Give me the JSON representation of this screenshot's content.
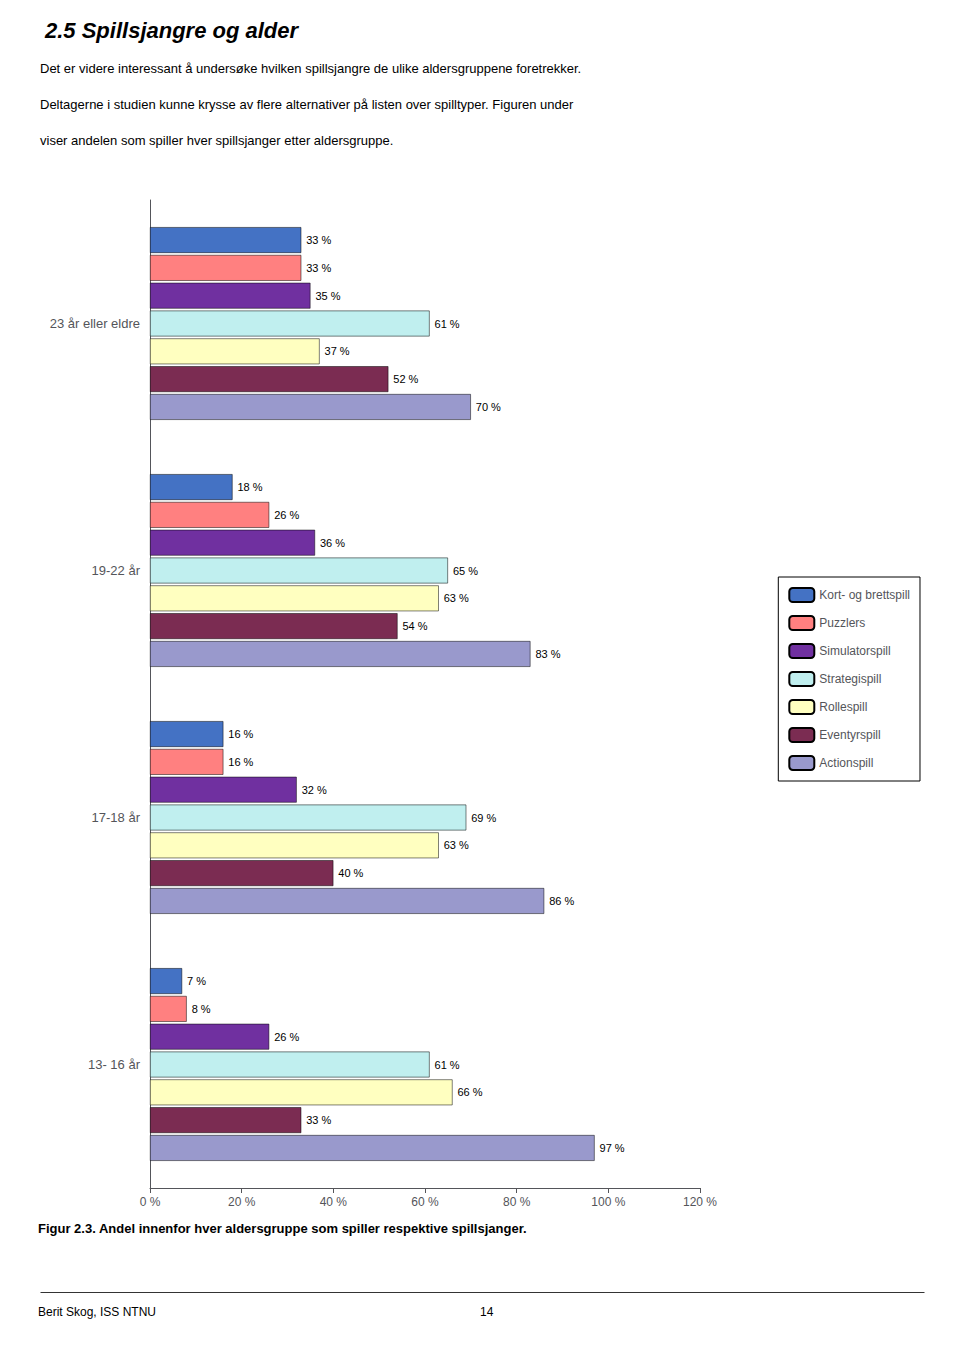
{
  "chart_data": {
    "type": "bar",
    "orientation": "horizontal",
    "title": "2.5 Spillsjangre og alder",
    "subtitle": [
      "Det er videre interessant å undersøke hvilken spillsjangre de ulike aldersgruppene foretrekker.",
      "Deltagerne i studien kunne krysse av flere alternativer på listen over spilltyper. Figuren under",
      "viser andelen som spiller hver spillsjanger etter aldersgruppe."
    ],
    "annotations": [
      "Figur 2.3. Andel innenfor hver aldersgruppe som spiller respektive spillsjanger.",
      "Berit Skog, ISS NTNU",
      "14"
    ],
    "categories": [
      "23 år eller eldre",
      "19-22 år",
      "17-18 år",
      "13- 16 år"
    ],
    "series": [
      {
        "name": "Kort- og brettspill",
        "color": "#4472C4",
        "values": [
          33,
          18,
          16,
          7
        ],
        "value_labels": [
          "33 %",
          "18 %",
          "16 %",
          "7 %"
        ]
      },
      {
        "name": "Puzzlers",
        "color": "#FF8080",
        "values": [
          33,
          26,
          16,
          8
        ],
        "value_labels": [
          "33 %",
          "26 %",
          "16 %",
          "8 %"
        ]
      },
      {
        "name": "Simulatorspill",
        "color": "#7030A0",
        "values": [
          35,
          36,
          32,
          26
        ],
        "value_labels": [
          "35 %",
          "36 %",
          "32 %",
          "26 %"
        ]
      },
      {
        "name": "Strategispill",
        "color": "#C0EFEF",
        "values": [
          61,
          65,
          69,
          61
        ],
        "value_labels": [
          "61 %",
          "65 %",
          "69 %",
          "61 %"
        ]
      },
      {
        "name": "Rollespill",
        "color": "#FFFFC0",
        "values": [
          37,
          63,
          63,
          66
        ],
        "value_labels": [
          "37 %",
          "63 %",
          "63 %",
          "66 %"
        ]
      },
      {
        "name": "Eventyrspill",
        "color": "#7B2C52",
        "values": [
          52,
          54,
          40,
          33
        ],
        "value_labels": [
          "52 %",
          "54 %",
          "40 %",
          "33 %"
        ]
      },
      {
        "name": "Actionspill",
        "color": "#9999CC",
        "values": [
          70,
          83,
          86,
          97
        ],
        "value_labels": [
          "70 %",
          "83 %",
          "86 %",
          "97 %"
        ]
      }
    ],
    "xlim": [
      0,
      120
    ],
    "xticks": [
      {
        "value": 0,
        "label": "0 %"
      },
      {
        "value": 20,
        "label": "20 %"
      },
      {
        "value": 40,
        "label": "40 %"
      },
      {
        "value": 60,
        "label": "60 %"
      },
      {
        "value": 80,
        "label": "80 %"
      },
      {
        "value": 100,
        "label": "100 %"
      },
      {
        "value": 120,
        "label": "120 %"
      }
    ],
    "data_labels": true,
    "legend": "right",
    "grid": false
  }
}
